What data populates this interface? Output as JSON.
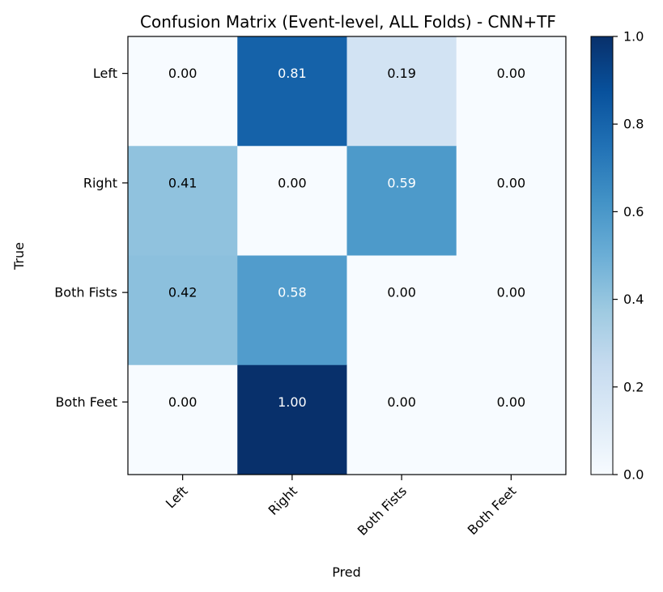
{
  "chart_data": {
    "type": "heatmap",
    "title": "Confusion Matrix (Event-level, ALL Folds) - CNN+TF",
    "xlabel": "Pred",
    "ylabel": "True",
    "x_categories": [
      "Left",
      "Right",
      "Both Fists",
      "Both Feet"
    ],
    "y_categories": [
      "Left",
      "Right",
      "Both Fists",
      "Both Feet"
    ],
    "values": [
      [
        0.0,
        0.81,
        0.19,
        0.0
      ],
      [
        0.41,
        0.0,
        0.59,
        0.0
      ],
      [
        0.42,
        0.58,
        0.0,
        0.0
      ],
      [
        0.0,
        1.0,
        0.0,
        0.0
      ]
    ],
    "cell_labels": [
      [
        "0.00",
        "0.81",
        "0.19",
        "0.00"
      ],
      [
        "0.41",
        "0.00",
        "0.59",
        "0.00"
      ],
      [
        "0.42",
        "0.58",
        "0.00",
        "0.00"
      ],
      [
        "0.00",
        "1.00",
        "0.00",
        "0.00"
      ]
    ],
    "colormap": "Blues",
    "colorbar": {
      "range": [
        0.0,
        1.0
      ],
      "ticks": [
        0.0,
        0.2,
        0.4,
        0.6,
        0.8,
        1.0
      ],
      "tick_labels": [
        "0.0",
        "0.2",
        "0.4",
        "0.6",
        "0.8",
        "1.0"
      ]
    },
    "grid": false
  }
}
